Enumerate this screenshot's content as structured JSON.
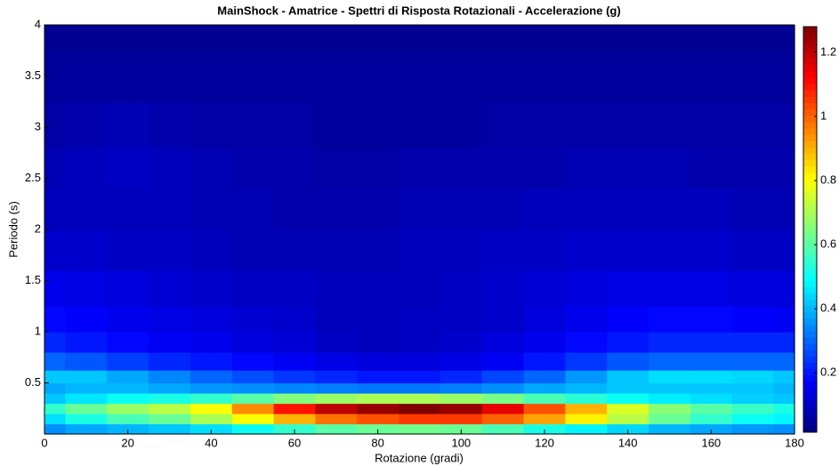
{
  "chart_data": {
    "type": "heatmap",
    "title": "MainShock - Amatrice - Spettri di Risposta Rotazionali - Accelerazione (g)",
    "xlabel": "Rotazione (gradi)",
    "ylabel": "Periodo (s)",
    "colormap": "jet",
    "x": [
      0,
      10,
      20,
      30,
      40,
      50,
      60,
      70,
      80,
      90,
      100,
      110,
      120,
      130,
      140,
      150,
      160,
      170,
      180
    ],
    "y": [
      0.05,
      0.15,
      0.25,
      0.35,
      0.45,
      0.55,
      0.7,
      0.9,
      1.1,
      1.4,
      1.8,
      2.2,
      2.6,
      3.0,
      3.5,
      4.0
    ],
    "values": [
      [
        0.35,
        0.38,
        0.4,
        0.42,
        0.45,
        0.5,
        0.55,
        0.6,
        0.62,
        0.63,
        0.62,
        0.58,
        0.52,
        0.48,
        0.44,
        0.4,
        0.38,
        0.36,
        0.35
      ],
      [
        0.45,
        0.52,
        0.58,
        0.62,
        0.7,
        0.8,
        0.9,
        0.98,
        1.02,
        1.05,
        1.05,
        1.0,
        0.92,
        0.82,
        0.72,
        0.62,
        0.55,
        0.5,
        0.48
      ],
      [
        0.55,
        0.62,
        0.68,
        0.72,
        0.8,
        0.95,
        1.1,
        1.2,
        1.25,
        1.28,
        1.25,
        1.15,
        1.02,
        0.9,
        0.76,
        0.66,
        0.6,
        0.56,
        0.52
      ],
      [
        0.42,
        0.46,
        0.5,
        0.52,
        0.55,
        0.6,
        0.65,
        0.68,
        0.7,
        0.7,
        0.68,
        0.64,
        0.58,
        0.54,
        0.5,
        0.47,
        0.45,
        0.43,
        0.42
      ],
      [
        0.38,
        0.4,
        0.4,
        0.38,
        0.36,
        0.35,
        0.34,
        0.33,
        0.32,
        0.32,
        0.33,
        0.35,
        0.38,
        0.4,
        0.42,
        0.42,
        0.42,
        0.42,
        0.4
      ],
      [
        0.42,
        0.42,
        0.38,
        0.34,
        0.3,
        0.27,
        0.24,
        0.22,
        0.2,
        0.2,
        0.22,
        0.26,
        0.3,
        0.36,
        0.42,
        0.45,
        0.45,
        0.44,
        0.42
      ],
      [
        0.3,
        0.28,
        0.25,
        0.22,
        0.2,
        0.18,
        0.16,
        0.14,
        0.13,
        0.13,
        0.14,
        0.16,
        0.2,
        0.24,
        0.28,
        0.3,
        0.3,
        0.3,
        0.3
      ],
      [
        0.22,
        0.2,
        0.18,
        0.16,
        0.15,
        0.13,
        0.12,
        0.1,
        0.09,
        0.1,
        0.11,
        0.13,
        0.15,
        0.18,
        0.2,
        0.22,
        0.22,
        0.22,
        0.22
      ],
      [
        0.18,
        0.17,
        0.15,
        0.14,
        0.13,
        0.12,
        0.11,
        0.09,
        0.09,
        0.1,
        0.1,
        0.11,
        0.13,
        0.15,
        0.17,
        0.18,
        0.18,
        0.17,
        0.16
      ],
      [
        0.15,
        0.14,
        0.13,
        0.12,
        0.11,
        0.1,
        0.1,
        0.09,
        0.09,
        0.09,
        0.1,
        0.11,
        0.12,
        0.13,
        0.14,
        0.14,
        0.14,
        0.13,
        0.13
      ],
      [
        0.11,
        0.11,
        0.1,
        0.1,
        0.09,
        0.08,
        0.08,
        0.08,
        0.08,
        0.09,
        0.09,
        0.1,
        0.1,
        0.11,
        0.11,
        0.11,
        0.11,
        0.1,
        0.1
      ],
      [
        0.09,
        0.09,
        0.09,
        0.09,
        0.08,
        0.08,
        0.07,
        0.07,
        0.07,
        0.08,
        0.08,
        0.08,
        0.09,
        0.09,
        0.09,
        0.09,
        0.09,
        0.08,
        0.08
      ],
      [
        0.08,
        0.09,
        0.1,
        0.09,
        0.08,
        0.07,
        0.07,
        0.06,
        0.06,
        0.07,
        0.07,
        0.07,
        0.07,
        0.08,
        0.08,
        0.08,
        0.07,
        0.07,
        0.07
      ],
      [
        0.06,
        0.07,
        0.08,
        0.07,
        0.06,
        0.06,
        0.06,
        0.05,
        0.05,
        0.05,
        0.05,
        0.06,
        0.06,
        0.06,
        0.06,
        0.06,
        0.06,
        0.06,
        0.06
      ],
      [
        0.05,
        0.05,
        0.05,
        0.05,
        0.05,
        0.05,
        0.05,
        0.05,
        0.05,
        0.05,
        0.05,
        0.05,
        0.05,
        0.05,
        0.05,
        0.05,
        0.05,
        0.05,
        0.05
      ],
      [
        0.04,
        0.04,
        0.04,
        0.04,
        0.04,
        0.04,
        0.04,
        0.04,
        0.04,
        0.04,
        0.04,
        0.04,
        0.04,
        0.04,
        0.04,
        0.04,
        0.04,
        0.04,
        0.04
      ]
    ],
    "xlim": [
      0,
      180
    ],
    "xticks": [
      0,
      20,
      40,
      60,
      80,
      100,
      120,
      140,
      160,
      180
    ],
    "ylim": [
      0,
      4
    ],
    "yticks": [
      0.5,
      1,
      1.5,
      2,
      2.5,
      3,
      3.5,
      4
    ],
    "clim": [
      0.015,
      1.28
    ],
    "cticks": [
      0.2,
      0.4,
      0.6,
      0.8,
      1,
      1.2
    ]
  }
}
